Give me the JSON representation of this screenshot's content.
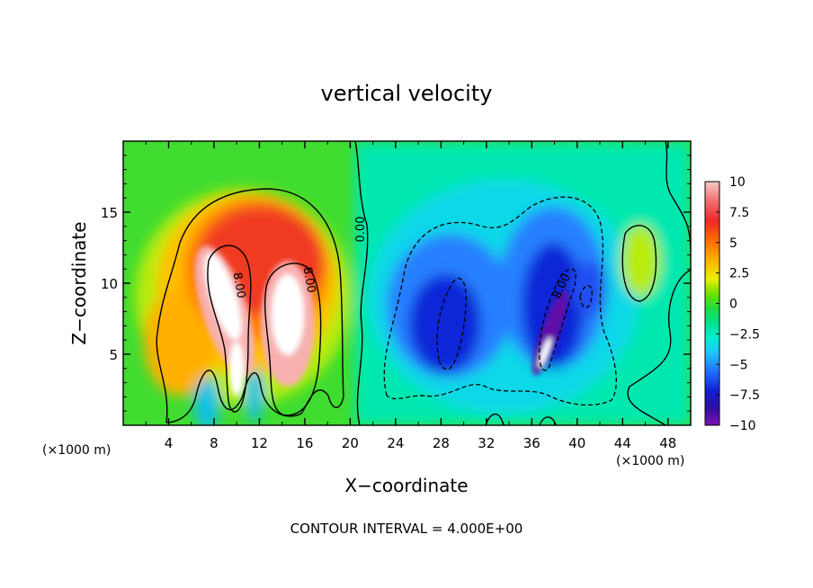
{
  "chart_data": {
    "type": "heatmap",
    "title": "vertical velocity",
    "xlabel": "X−coordinate",
    "ylabel": "Z−coordinate",
    "x_unit_left": "(×1000 m)",
    "x_unit_right": "(×1000 m)",
    "footer": "CONTOUR INTERVAL = 4.000E+00",
    "xlim": [
      0,
      50
    ],
    "ylim": [
      0,
      20
    ],
    "x_ticks": [
      4,
      8,
      12,
      16,
      20,
      24,
      28,
      32,
      36,
      40,
      44,
      48
    ],
    "x_tick_labels": [
      "4",
      "8",
      "12",
      "16",
      "20",
      "24",
      "28",
      "32",
      "36",
      "40",
      "44",
      "48"
    ],
    "y_ticks": [
      5,
      10,
      15
    ],
    "y_tick_labels": [
      "5",
      "10",
      "15"
    ],
    "colorbar": {
      "range": [
        -10,
        10
      ],
      "ticks": [
        10,
        7.5,
        5,
        2.5,
        0,
        -2.5,
        -5,
        -7.5,
        -10
      ],
      "tick_labels": [
        "10",
        "7.5",
        "5",
        "2.5",
        "0",
        "−2.5",
        "−5",
        "−7.5",
        "−10"
      ],
      "colors": [
        "#f4aaa8",
        "#f04040",
        "#ff7a00",
        "#ffc000",
        "#f0f000",
        "#a0f000",
        "#30dc20",
        "#00e070",
        "#00f0c0",
        "#30c0ff",
        "#2070ff",
        "#1030e0",
        "#2010b0",
        "#7a10b0",
        "#5a0080"
      ]
    },
    "contour_labels": [
      "8.00",
      "8.00",
      "0.00",
      "8.00"
    ],
    "contour_interval": 4.0,
    "features": [
      {
        "x": 10.5,
        "z": 8.5,
        "w": 10.5,
        "sign": "updraft"
      },
      {
        "x": 14.5,
        "z": 8.0,
        "w": 10.5,
        "sign": "updraft"
      },
      {
        "x": 29.0,
        "z": 6.0,
        "w": -9.0,
        "sign": "downdraft"
      },
      {
        "x": 37.5,
        "z": 6.0,
        "w": -10.0,
        "sign": "downdraft"
      }
    ]
  }
}
